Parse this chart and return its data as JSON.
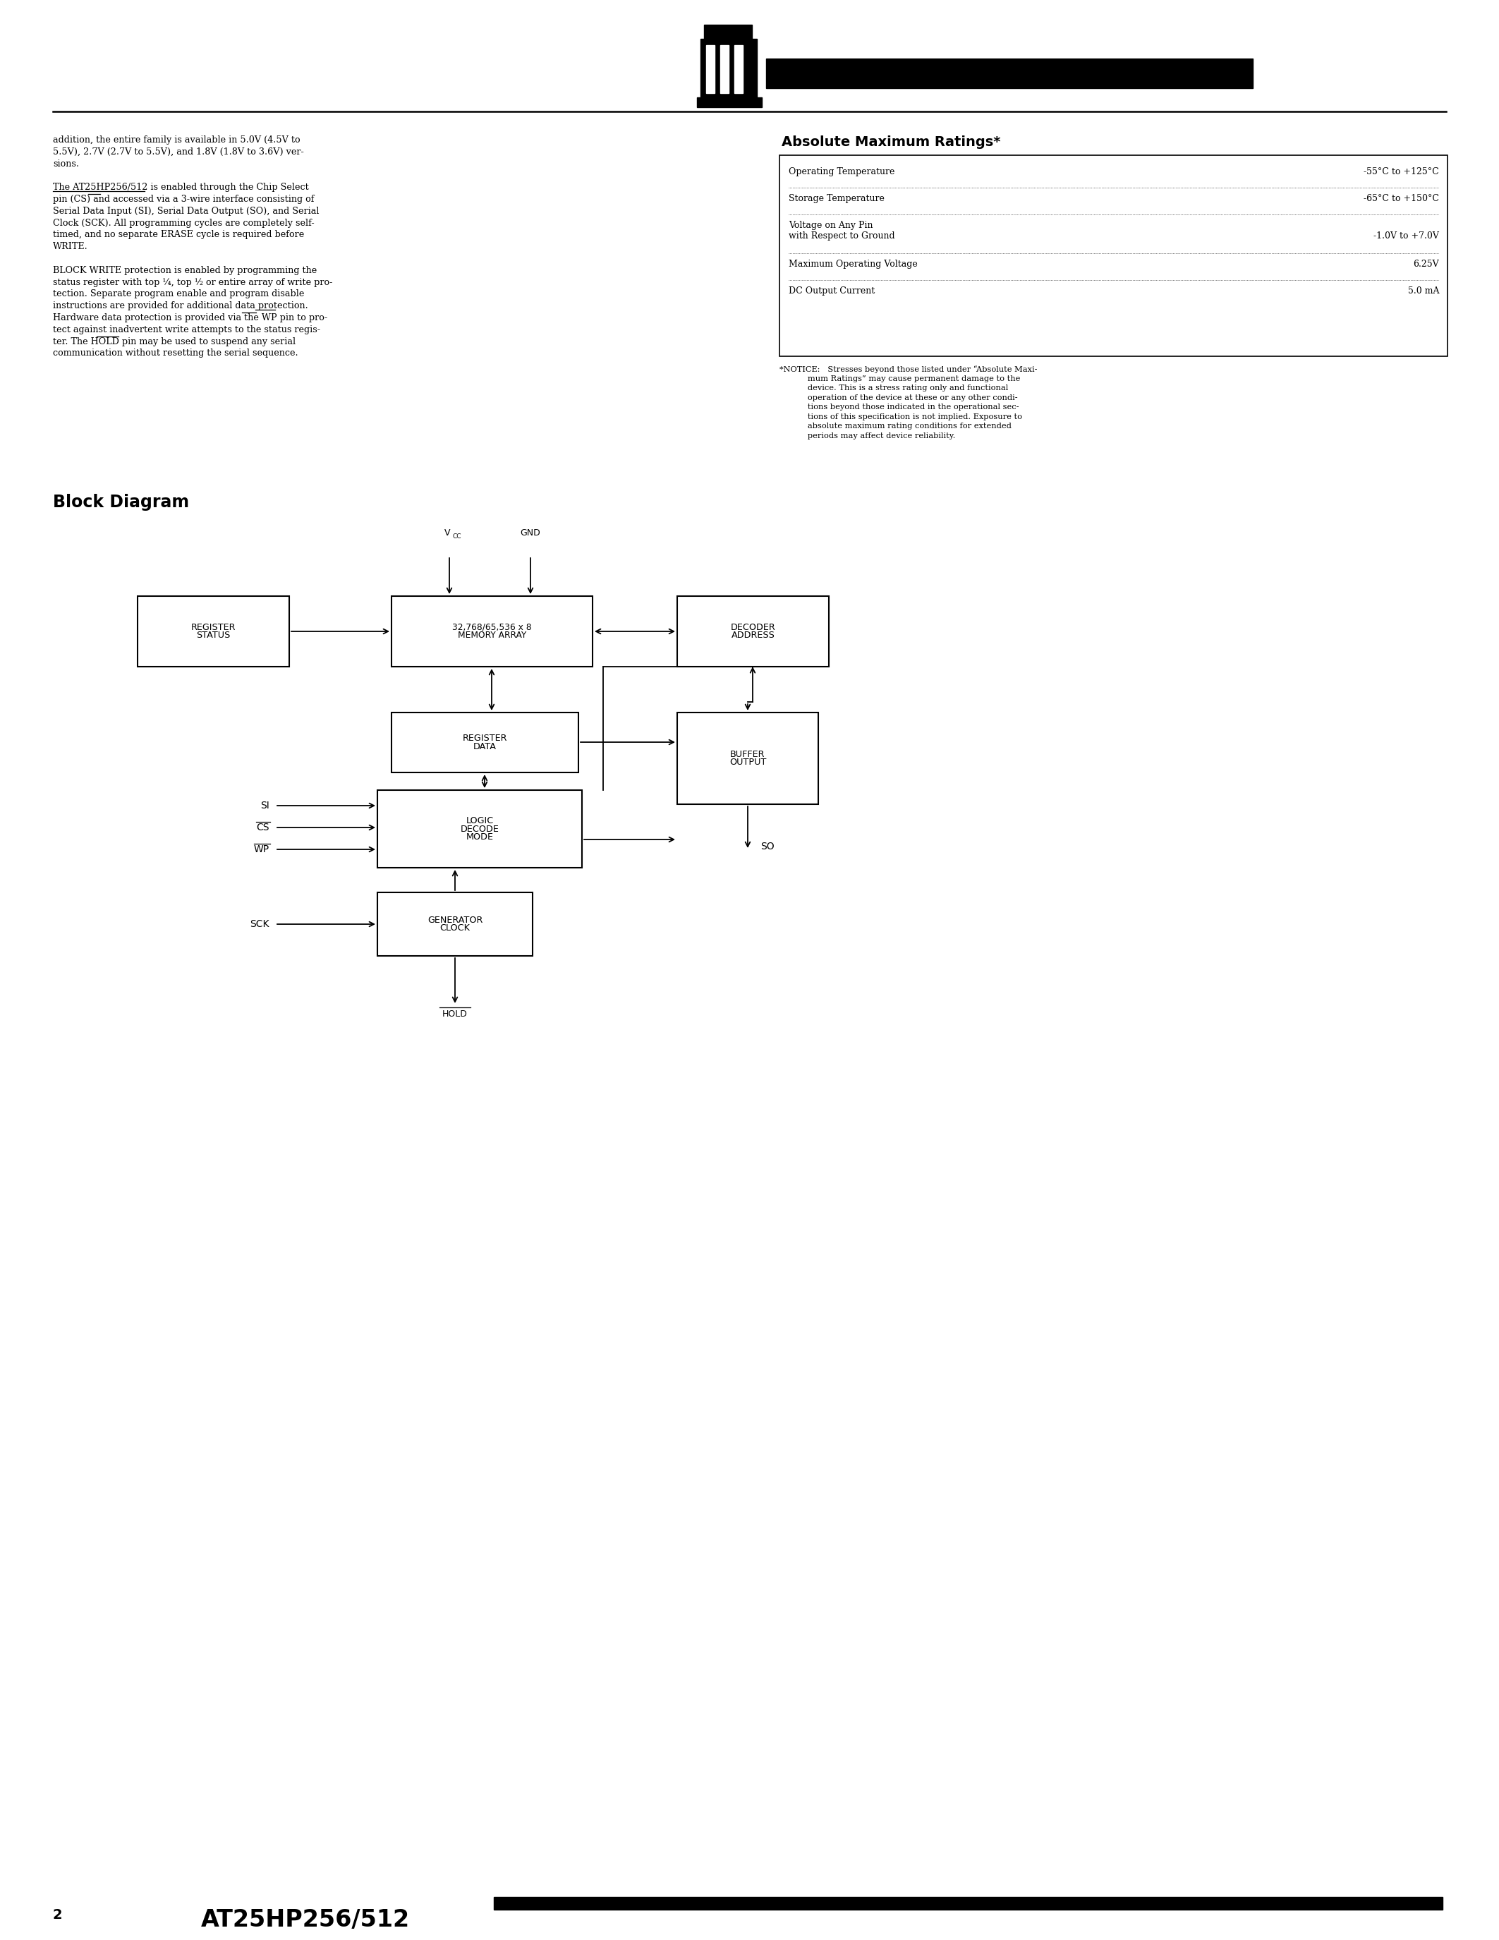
{
  "bg_color": "#ffffff",
  "left_col_lines": [
    "addition, the entire family is available in 5.0V (4.5V to",
    "5.5V), 2.7V (2.7V to 5.5V), and 1.8V (1.8V to 3.6V) ver-",
    "sions.",
    "",
    "The AT25HP256/512 is enabled through the Chip Select",
    "pin (CS) and accessed via a 3-wire interface consisting of",
    "Serial Data Input (SI), Serial Data Output (SO), and Serial",
    "Clock (SCK). All programming cycles are completely self-",
    "timed, and no separate ERASE cycle is required before",
    "WRITE.",
    "",
    "BLOCK WRITE protection is enabled by programming the",
    "status register with top ¼, top ½ or entire array of write pro-",
    "tection. Separate program enable and program disable",
    "instructions are provided for additional data protection.",
    "Hardware data protection is provided via the WP pin to pro-",
    "tect against inadvertent write attempts to the status regis-",
    "ter. The HOLD pin may be used to suspend any serial",
    "communication without resetting the serial sequence."
  ],
  "abs_title": "Absolute Maximum Ratings*",
  "rows": [
    [
      "Operating Temperature",
      "-55°C to +125°C"
    ],
    [
      "Storage Temperature",
      "-65°C to +150°C"
    ],
    [
      "Voltage on Any Pin",
      ""
    ],
    [
      "with Respect to Ground",
      "-1.0V to +7.0V"
    ],
    [
      "Maximum Operating Voltage",
      "6.25V"
    ],
    [
      "DC Output Current",
      "5.0 mA"
    ]
  ],
  "notice_lines": [
    "*NOTICE:   Stresses beyond those listed under “Absolute Maxi-",
    "           mum Ratings” may cause permanent damage to the",
    "           device. This is a stress rating only and functional",
    "           operation of the device at these or any other condi-",
    "           tions beyond those indicated in the operational sec-",
    "           tions of this specification is not implied. Exposure to",
    "           absolute maximum rating conditions for extended",
    "           periods may affect device reliability."
  ],
  "block_diagram_title": "Block Diagram",
  "footer_num": "2",
  "footer_chip": "AT25HP256/512",
  "SR": [
    195,
    845,
    215,
    100
  ],
  "MA": [
    555,
    845,
    285,
    100
  ],
  "AD": [
    960,
    845,
    215,
    100
  ],
  "DR": [
    555,
    1010,
    265,
    85
  ],
  "OB": [
    960,
    1010,
    200,
    130
  ],
  "MD": [
    535,
    1120,
    290,
    110
  ],
  "CG": [
    535,
    1265,
    220,
    90
  ]
}
